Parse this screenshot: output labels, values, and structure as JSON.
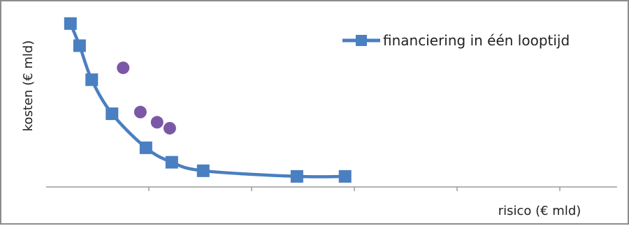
{
  "chart_data": {
    "type": "line",
    "title": "",
    "xlabel": "risico (€ mld)",
    "ylabel": "kosten (€ mld)",
    "xlim": [
      0,
      10
    ],
    "ylim": [
      0,
      10
    ],
    "grid": false,
    "x_ticks_labeled": false,
    "y_ticks_labeled": false,
    "legend_position": "top-right",
    "series": [
      {
        "name": "financiering in één looptijd",
        "kind": "line",
        "marker": "square",
        "smooth": true,
        "color": "#4a7fc1",
        "points": [
          {
            "x": 0.48,
            "y": 9.6
          },
          {
            "x": 0.66,
            "y": 8.3
          },
          {
            "x": 0.9,
            "y": 6.3
          },
          {
            "x": 1.3,
            "y": 4.3
          },
          {
            "x": 1.97,
            "y": 2.3
          },
          {
            "x": 2.48,
            "y": 1.45
          },
          {
            "x": 3.1,
            "y": 0.95
          },
          {
            "x": 4.95,
            "y": 0.62
          },
          {
            "x": 5.9,
            "y": 0.62
          }
        ]
      },
      {
        "kind": "scatter",
        "marker": "circle",
        "color": "#7b58a6",
        "points": [
          {
            "x": 1.52,
            "y": 7.0
          },
          {
            "x": 1.86,
            "y": 4.4
          },
          {
            "x": 2.19,
            "y": 3.8
          },
          {
            "x": 2.44,
            "y": 3.45
          }
        ]
      }
    ]
  }
}
